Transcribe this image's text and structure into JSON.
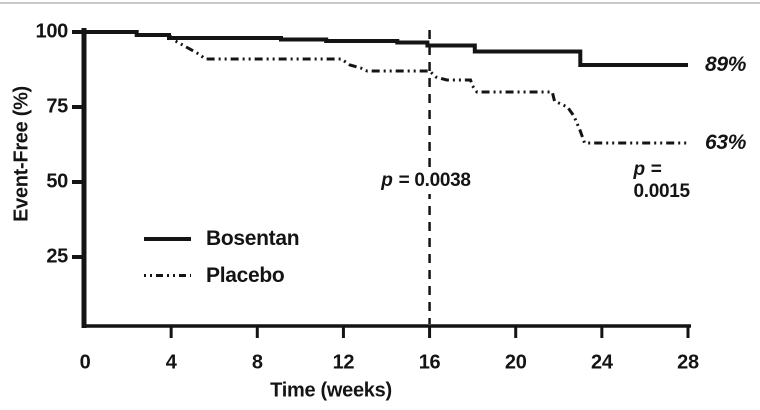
{
  "page": {
    "ink_color": "#141414",
    "top_border_color": "#c9c9c9",
    "background": "#ffffff"
  },
  "axes": {
    "ylabel": "Event-Free (%)",
    "xlabel": "Time (weeks)"
  },
  "legend": {
    "items": [
      {
        "label": "Bosentan",
        "swatch": "solid-line"
      },
      {
        "label": "Placebo",
        "swatch": "dash-dot-line"
      }
    ]
  },
  "annotations": {
    "p_left_prefix": "p",
    "p_left_rest": " = 0.0038",
    "p_right_prefix": "p",
    "p_right_rest": " = 0.0015",
    "end_bosentan": "89%",
    "end_placebo": "63%"
  },
  "chart_data": {
    "type": "line",
    "subtype": "kaplan-meier-step",
    "title": "",
    "xlabel": "Time (weeks)",
    "ylabel": "Event-Free (%)",
    "xlim": [
      0,
      28
    ],
    "ylim": [
      0,
      105
    ],
    "x_ticks": [
      0,
      4,
      8,
      12,
      16,
      20,
      24,
      28
    ],
    "y_ticks": [
      100,
      75,
      50,
      25
    ],
    "grid": false,
    "legend_position": "inside-lower-left",
    "reference_line": {
      "axis": "x",
      "value": 16,
      "style": "dashed"
    },
    "annotations": [
      {
        "text": "p = 0.0038",
        "near_week": 16,
        "placement": "on dashed reference line, mid-height"
      },
      {
        "text": "p = 0.0015",
        "near_week": 27,
        "placement": "right side, mid-height"
      }
    ],
    "series": [
      {
        "name": "Bosentan",
        "line_style": "solid",
        "end_label": "89%",
        "points": [
          [
            0,
            100
          ],
          [
            2.4,
            100
          ],
          [
            2.4,
            99
          ],
          [
            3.9,
            99
          ],
          [
            3.9,
            98
          ],
          [
            9.1,
            98
          ],
          [
            9.1,
            97.5
          ],
          [
            11.2,
            97.5
          ],
          [
            11.2,
            97
          ],
          [
            14.5,
            97
          ],
          [
            14.5,
            96.5
          ],
          [
            15.9,
            96.5
          ],
          [
            15.9,
            95.5
          ],
          [
            18.1,
            95.5
          ],
          [
            18.1,
            93.5
          ],
          [
            23,
            93.5
          ],
          [
            23,
            89
          ],
          [
            28,
            89
          ]
        ]
      },
      {
        "name": "Placebo",
        "line_style": "dash-dot",
        "end_label": "63%",
        "points": [
          [
            0,
            100
          ],
          [
            2.4,
            100
          ],
          [
            2.4,
            99
          ],
          [
            3.9,
            99
          ],
          [
            4.2,
            97
          ],
          [
            4.7,
            95
          ],
          [
            5.2,
            93
          ],
          [
            5.6,
            91
          ],
          [
            11.9,
            91
          ],
          [
            12.3,
            89
          ],
          [
            12.8,
            88
          ],
          [
            13.1,
            87
          ],
          [
            16,
            87
          ],
          [
            16.3,
            85
          ],
          [
            16.8,
            84
          ],
          [
            17.9,
            84
          ],
          [
            18,
            82
          ],
          [
            18.2,
            80
          ],
          [
            21.7,
            80
          ],
          [
            21.8,
            77
          ],
          [
            22.4,
            75
          ],
          [
            22.7,
            72
          ],
          [
            23,
            67
          ],
          [
            23.2,
            63
          ],
          [
            28,
            63
          ]
        ]
      }
    ]
  }
}
